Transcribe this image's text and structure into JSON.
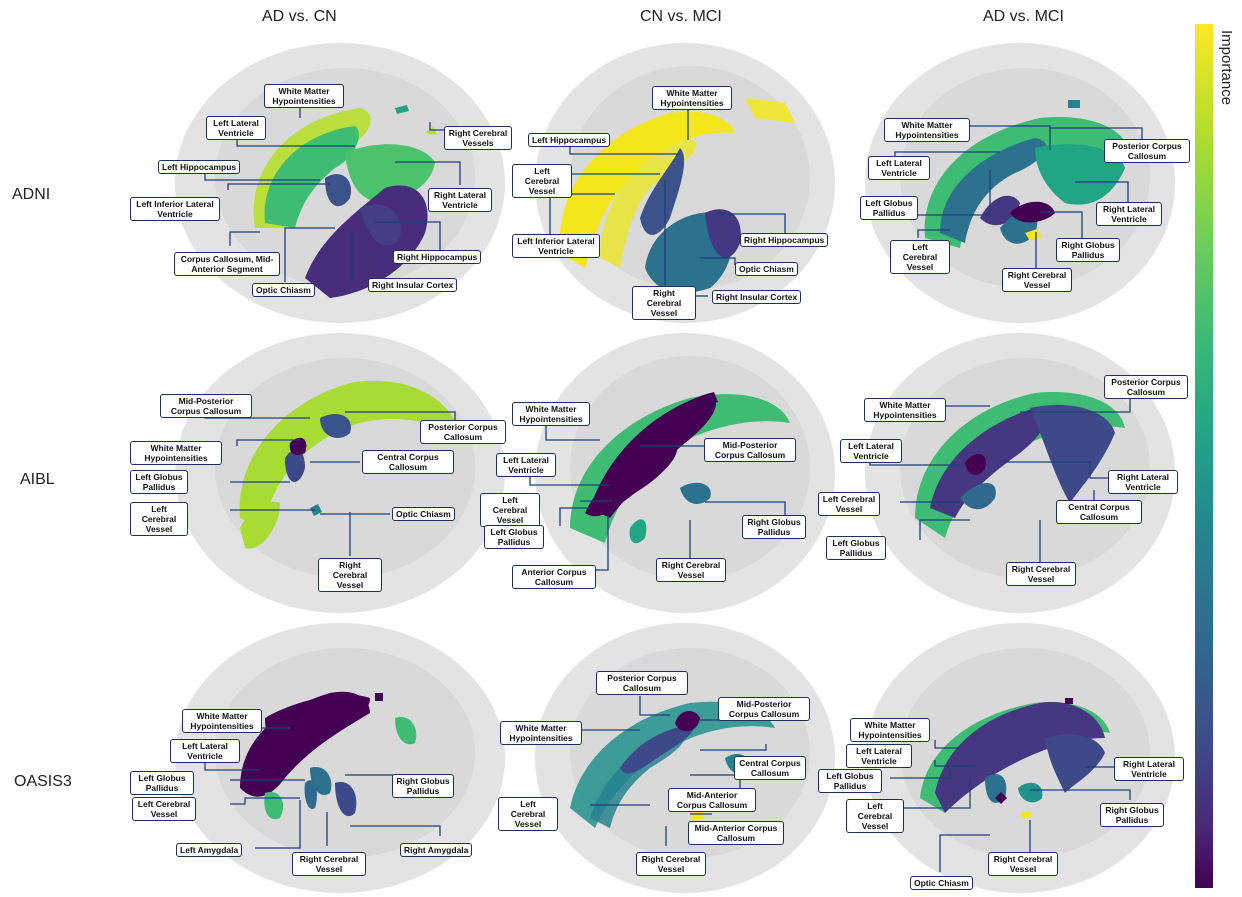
{
  "columns": [
    "AD vs. CN",
    "CN vs. MCI",
    "AD vs. MCI"
  ],
  "rows": [
    "ADNI",
    "AIBL",
    "OASIS3"
  ],
  "colorbar": {
    "label": "Importance",
    "colors": [
      "#fde725",
      "#35b779",
      "#31688e",
      "#440154"
    ]
  },
  "panels": {
    "p11": [
      "White Matter Hypointensities",
      "Left Lateral Ventricle",
      "Right Cerebral Vessels",
      "Left Hippocampus",
      "Left Inferior Lateral Ventricle",
      "Right Lateral Ventricle",
      "Corpus Callosum, Mid-Anterior Segment",
      "Right Hippocampus",
      "Optic Chiasm",
      "Right Insular Cortex"
    ],
    "p12": [
      "White Matter Hypointensities",
      "Left Hippocampus",
      "Left Cerebral Vessel",
      "Left Inferior Lateral Ventricle",
      "Right Hippocampus",
      "Optic Chiasm",
      "Right Cerebral Vessel",
      "Right Insular Cortex"
    ],
    "p13": [
      "White Matter Hypointensities",
      "Posterior Corpus Callosum",
      "Left Lateral Ventricle",
      "Left Globus Pallidus",
      "Right Lateral Ventricle",
      "Left Cerebral Vessel",
      "Right Globus Pallidus",
      "Right Cerebral Vessel"
    ],
    "p21": [
      "Mid-Posterior Corpus Callosum",
      "Posterior Corpus Callosum",
      "White Matter Hypointensities",
      "Central Corpus Callosum",
      "Left Globus Pallidus",
      "Left Cerebral Vessel",
      "Optic Chiasm",
      "Right Cerebral Vessel"
    ],
    "p22": [
      "White Matter Hypointensities",
      "Mid-Posterior Corpus Callosum",
      "Left Lateral Ventricle",
      "Left Cerebral Vessel",
      "Left Globus Pallidus",
      "Right Globus Pallidus",
      "Anterior Corpus Callosum",
      "Right Cerebral Vessel"
    ],
    "p23": [
      "Posterior Corpus Callosum",
      "White Matter Hypointensities",
      "Left Lateral Ventricle",
      "Right Lateral Ventricle",
      "Left Cerebral Vessel",
      "Central Corpus Callosum",
      "Left Globus Pallidus",
      "Right Cerebral Vessel"
    ],
    "p31": [
      "White Matter Hypointensities",
      "Left Lateral Ventricle",
      "Left Globus Pallidus",
      "Left Cerebral Vessel",
      "Right Globus Pallidus",
      "Left Amygdala",
      "Right Cerebral Vessel",
      "Right Amygdala"
    ],
    "p32": [
      "Posterior Corpus Callosum",
      "Mid-Posterior Corpus Callosum",
      "White Matter Hypointensities",
      "Central Corpus Callosum",
      "Mid-Anterior Corpus Callosum",
      "Left Cerebral Vessel",
      "Mid-Anterior Corpus Callosum",
      "Right Cerebral Vessel"
    ],
    "p33": [
      "White Matter Hypointensities",
      "Left Lateral Ventricle",
      "Right Lateral Ventricle",
      "Left Globus Pallidus",
      "Left Cerebral Vessel",
      "Right Globus Pallidus",
      "Optic Chiasm",
      "Right Cerebral Vessel"
    ]
  }
}
